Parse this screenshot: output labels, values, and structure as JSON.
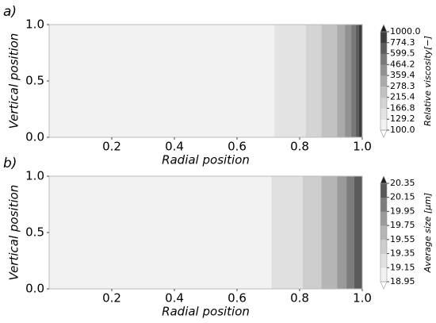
{
  "chart_data": [
    {
      "type": "contour",
      "panel_label": "a)",
      "xlabel": "Radial position",
      "ylabel": "Vertical position",
      "colorbar_label": "Relative viscosity[−]",
      "xlim": [
        0,
        1
      ],
      "ylim": [
        0,
        1
      ],
      "xticks": [
        0.2,
        0.4,
        0.6,
        0.8,
        {
          "value": 1,
          "label": "1.0"
        }
      ],
      "yticks": [
        {
          "value": 0,
          "label": "0.0"
        },
        0.5,
        {
          "value": 1,
          "label": "1.0"
        }
      ],
      "levels": [
        {
          "value": 100,
          "label": "100.0"
        },
        129.2,
        166.8,
        215.4,
        278.3,
        359.4,
        464.2,
        599.5,
        774.3,
        {
          "value": 1000,
          "label": "1000.0"
        }
      ],
      "x_edges": [
        0,
        0.72,
        0.82,
        0.87,
        0.92,
        0.945,
        0.965,
        0.98,
        0.99,
        1.0
      ],
      "colors": [
        "#f2f2f2",
        "#e3e3e3",
        "#d4d4d4",
        "#c2c2c2",
        "#aaaaaa",
        "#929292",
        "#787878",
        "#5c5c5c",
        "#3d3d3d"
      ],
      "extend_colors": [
        "#ffffff",
        "#1e1e1e"
      ]
    },
    {
      "type": "contour",
      "panel_label": "b)",
      "xlabel": "Radial position",
      "ylabel": "Vertical position",
      "colorbar_label": "Average size [μm]",
      "xlim": [
        0,
        1
      ],
      "ylim": [
        0,
        1
      ],
      "xticks": [
        0.2,
        0.4,
        0.6,
        0.8,
        {
          "value": 1,
          "label": "1.0"
        }
      ],
      "yticks": [
        {
          "value": 0,
          "label": "0.0"
        },
        0.5,
        {
          "value": 1,
          "label": "1.0"
        }
      ],
      "levels": [
        18.95,
        19.15,
        19.35,
        19.55,
        19.75,
        19.95,
        20.15,
        20.35
      ],
      "x_edges": [
        0,
        0.71,
        0.81,
        0.87,
        0.92,
        0.95,
        0.975,
        1.0
      ],
      "colors": [
        "#f2f2f2",
        "#e0e0e0",
        "#cdcdcd",
        "#b5b5b5",
        "#9a9a9a",
        "#7c7c7c",
        "#5a5a5a"
      ],
      "extend_colors": [
        "#ffffff",
        "#1e1e1e"
      ]
    }
  ]
}
